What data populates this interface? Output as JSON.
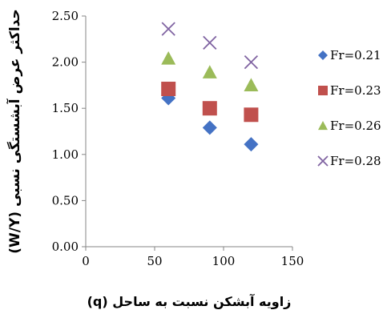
{
  "chart_data": {
    "type": "scatter",
    "title": "",
    "xlabel": "زاویه آبشکن نسبت به ساحل (q)",
    "ylabel": "حداکثر عرض آبشستگی نسبی (W/Y)",
    "xlim": [
      0,
      150
    ],
    "ylim": [
      0,
      2.5
    ],
    "x_ticks": [
      "0",
      "50",
      "100",
      "150"
    ],
    "y_ticks": [
      "0.00",
      "0.50",
      "1.00",
      "1.50",
      "2.00",
      "2.50"
    ],
    "grid": false,
    "legend_position": "right",
    "series": [
      {
        "name": "Fr=0.21",
        "marker": "diamond",
        "color": "#4472C4",
        "points": [
          {
            "x": 60,
            "y": 1.61
          },
          {
            "x": 90,
            "y": 1.29
          },
          {
            "x": 120,
            "y": 1.11
          }
        ]
      },
      {
        "name": "Fr=0.23",
        "marker": "square",
        "color": "#C0504D",
        "points": [
          {
            "x": 60,
            "y": 1.71
          },
          {
            "x": 90,
            "y": 1.5
          },
          {
            "x": 120,
            "y": 1.43
          }
        ]
      },
      {
        "name": "Fr=0.26",
        "marker": "triangle",
        "color": "#9BBB59",
        "points": [
          {
            "x": 60,
            "y": 2.04
          },
          {
            "x": 90,
            "y": 1.89
          },
          {
            "x": 120,
            "y": 1.75
          }
        ]
      },
      {
        "name": "Fr=0.28",
        "marker": "x",
        "color": "#8064A2",
        "points": [
          {
            "x": 60,
            "y": 2.36
          },
          {
            "x": 90,
            "y": 2.21
          },
          {
            "x": 120,
            "y": 2.0
          }
        ]
      }
    ]
  }
}
